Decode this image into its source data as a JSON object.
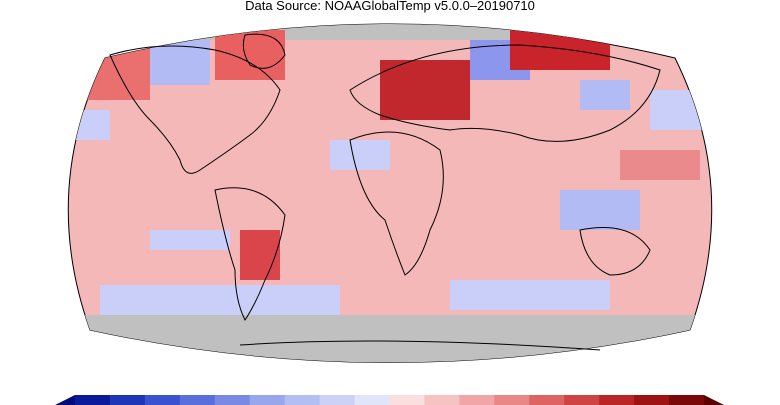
{
  "header": {
    "source_text": "Data Source: NOAAGlobalTemp v5.0.0–20190710"
  },
  "map": {
    "projection": "Robinson",
    "variable": "surface temperature anomaly",
    "missing_data_color": "#c0c0c0",
    "coastline_color": "#000000",
    "palette": {
      "warm_strong": "#b00f1c",
      "warm_mid": "#e0585b",
      "warm_light": "#f3a3a6",
      "warm_faint": "#f8c9c9",
      "cool_faint": "#d6dbfb",
      "cool_light": "#b3bbf5",
      "cool_mid": "#7d89ea",
      "cool_strong": "#2a3bd0"
    }
  },
  "colorbar": {
    "colors": [
      "#0a1a9a",
      "#1f35b8",
      "#3a52d0",
      "#5a6fdc",
      "#7a8ae4",
      "#98a6ec",
      "#b3bef2",
      "#cbd2f6",
      "#e1e5fa",
      "#fbdede",
      "#f6c3c3",
      "#f0a6a6",
      "#e98787",
      "#de6464",
      "#cf4343",
      "#ba2525",
      "#9d1313",
      "#7a0808"
    ]
  }
}
